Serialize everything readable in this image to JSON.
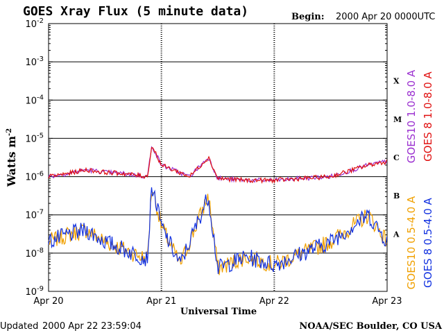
{
  "chart_data": {
    "type": "line",
    "title": "GOES Xray Flux (5 minute data)",
    "begin_label": "Begin:",
    "begin_value": "2000 Apr 20 0000UTC",
    "ylabel": "Watts m",
    "ylabel_exp": "-2",
    "xlabel": "Universal Time",
    "y_scale": "log",
    "ylim": [
      1e-09,
      0.01
    ],
    "y_ticks": [
      {
        "base": "10",
        "exp": "-2",
        "value": 0.01
      },
      {
        "base": "10",
        "exp": "-3",
        "value": 0.001
      },
      {
        "base": "10",
        "exp": "-4",
        "value": 0.0001
      },
      {
        "base": "10",
        "exp": "-5",
        "value": 1e-05
      },
      {
        "base": "10",
        "exp": "-6",
        "value": 1e-06
      },
      {
        "base": "10",
        "exp": "-7",
        "value": 1e-07
      },
      {
        "base": "10",
        "exp": "-8",
        "value": 1e-08
      },
      {
        "base": "10",
        "exp": "-9",
        "value": 1e-09
      }
    ],
    "x_range_days": [
      "2000-04-20",
      "2000-04-23"
    ],
    "x_ticks": [
      {
        "label": "Apr 20",
        "day": "2000-04-20"
      },
      {
        "label": "Apr 21",
        "day": "2000-04-21"
      },
      {
        "label": "Apr 22",
        "day": "2000-04-22"
      },
      {
        "label": "Apr 23",
        "day": "2000-04-23"
      }
    ],
    "flare_classes": [
      {
        "label": "X",
        "value": 0.0001
      },
      {
        "label": "M",
        "value": 1e-05
      },
      {
        "label": "C",
        "value": 1e-06
      },
      {
        "label": "B",
        "value": 1e-07
      },
      {
        "label": "A",
        "value": 1e-08
      }
    ],
    "grid": "horizontal at each decade; dotted vertical at day boundaries",
    "legend_position": "right, rotated",
    "series": [
      {
        "name": "GOES10 1.0-8.0 A",
        "color": "#9b30d0",
        "band": "long"
      },
      {
        "name": "GOES 8 1.0-8.0 A",
        "color": "#e01010",
        "band": "long"
      },
      {
        "name": "GOES10 0.5-4.0 A",
        "color": "#f0a000",
        "band": "short"
      },
      {
        "name": "GOES 8 0.5-4.0 A",
        "color": "#1030e0",
        "band": "short"
      }
    ],
    "long_channel_points": [
      {
        "day": "2000-04-20T00:00",
        "flux": 1e-06
      },
      {
        "day": "2000-04-20T04:00",
        "flux": 1.2e-06
      },
      {
        "day": "2000-04-20T08:00",
        "flux": 1.5e-06
      },
      {
        "day": "2000-04-20T12:00",
        "flux": 1.3e-06
      },
      {
        "day": "2000-04-20T16:00",
        "flux": 1.2e-06
      },
      {
        "day": "2000-04-20T21:00",
        "flux": 1e-06
      },
      {
        "day": "2000-04-20T22:00",
        "flux": 6.5e-06
      },
      {
        "day": "2000-04-21T00:00",
        "flux": 2e-06
      },
      {
        "day": "2000-04-21T06:00",
        "flux": 1e-06
      },
      {
        "day": "2000-04-21T10:00",
        "flux": 3.2e-06
      },
      {
        "day": "2000-04-21T12:00",
        "flux": 9e-07
      },
      {
        "day": "2000-04-21T18:00",
        "flux": 8e-07
      },
      {
        "day": "2000-04-22T00:00",
        "flux": 8e-07
      },
      {
        "day": "2000-04-22T12:00",
        "flux": 1e-06
      },
      {
        "day": "2000-04-22T20:00",
        "flux": 2e-06
      },
      {
        "day": "2000-04-23T00:00",
        "flux": 2.5e-06
      }
    ],
    "short_channel_points": [
      {
        "day": "2000-04-20T00:00",
        "flux": 2e-08
      },
      {
        "day": "2000-04-20T04:00",
        "flux": 3e-08
      },
      {
        "day": "2000-04-20T08:00",
        "flux": 4e-08
      },
      {
        "day": "2000-04-20T12:00",
        "flux": 2e-08
      },
      {
        "day": "2000-04-20T21:00",
        "flux": 7e-09
      },
      {
        "day": "2000-04-20T22:00",
        "flux": 6e-07
      },
      {
        "day": "2000-04-21T00:00",
        "flux": 5e-08
      },
      {
        "day": "2000-04-21T04:00",
        "flux": 5e-09
      },
      {
        "day": "2000-04-21T10:00",
        "flux": 3.2e-07
      },
      {
        "day": "2000-04-21T12:00",
        "flux": 4e-09
      },
      {
        "day": "2000-04-21T18:00",
        "flux": 8e-09
      },
      {
        "day": "2000-04-22T00:00",
        "flux": 5e-09
      },
      {
        "day": "2000-04-22T12:00",
        "flux": 2e-08
      },
      {
        "day": "2000-04-22T20:00",
        "flux": 1e-07
      },
      {
        "day": "2000-04-23T00:00",
        "flux": 2e-08
      }
    ]
  },
  "footer": {
    "updated_label": "Updated",
    "updated_value": "2000 Apr 22 23:59:04",
    "source": "NOAA/SEC Boulder, CO USA"
  }
}
